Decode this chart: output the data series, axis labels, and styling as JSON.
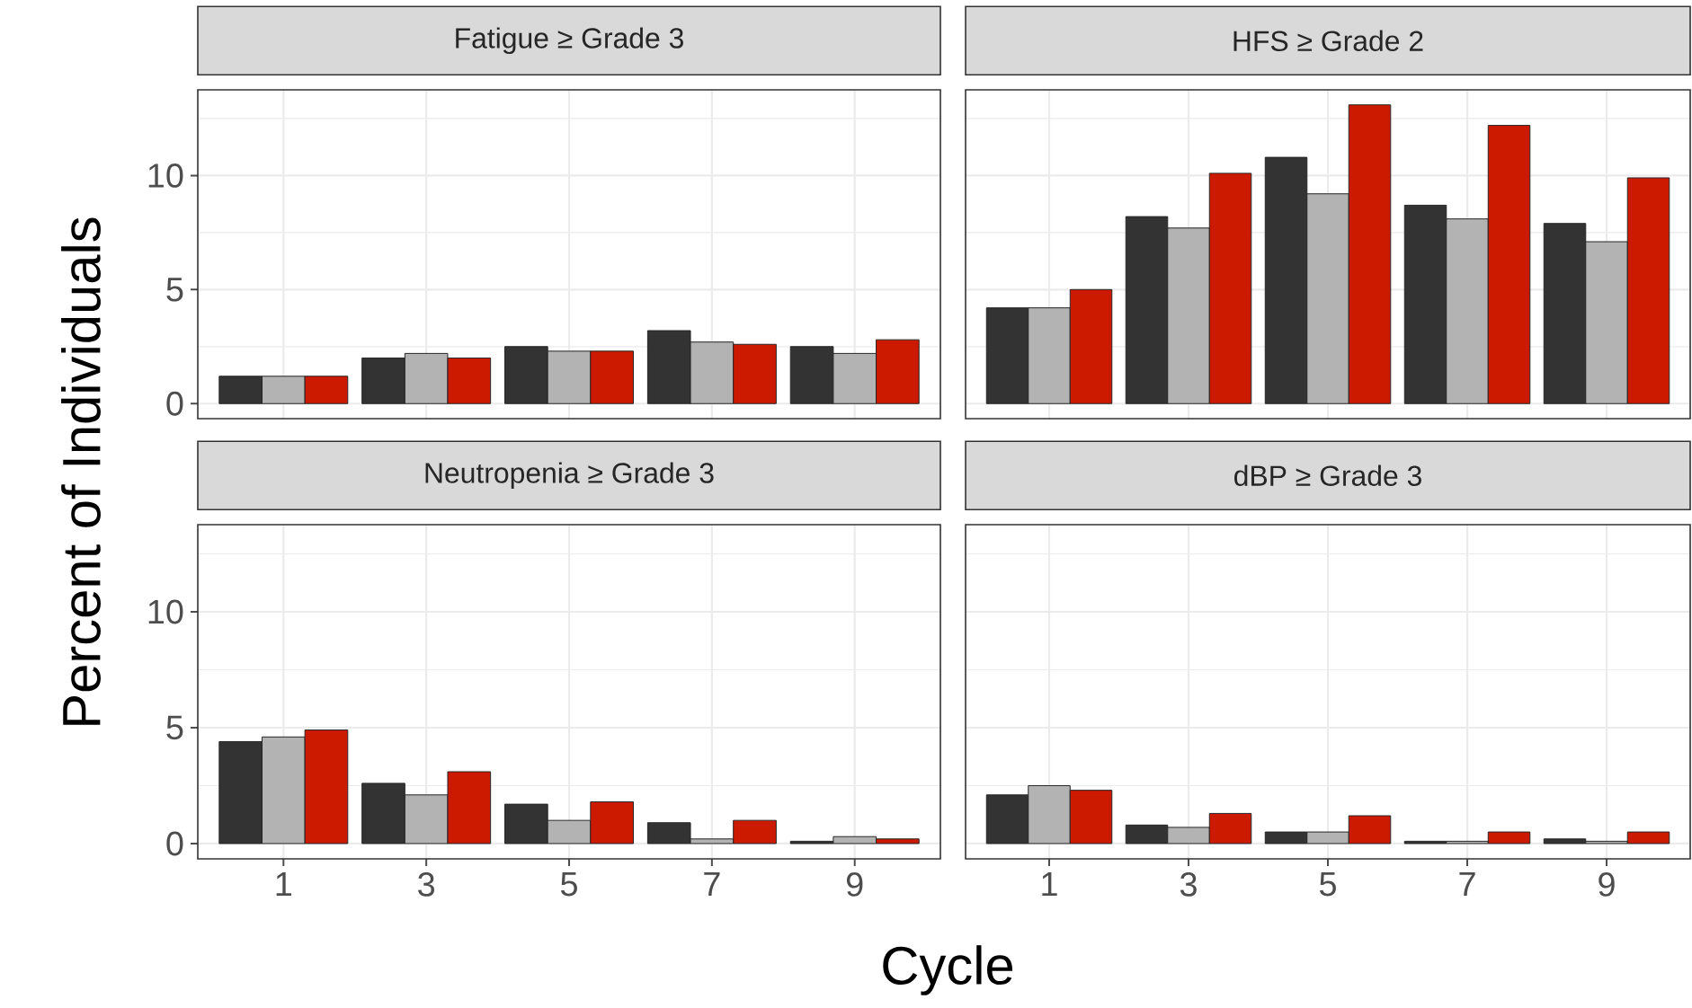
{
  "chart_data": [
    {
      "type": "bar",
      "title": "Fatigue ≥ Grade 3",
      "ylabel": "Percent of Individuals",
      "x": [
        1,
        3,
        5,
        7,
        9
      ],
      "xlim": [
        -0.2,
        10.2
      ],
      "xticks": [
        1,
        3,
        5,
        7,
        9
      ],
      "ylim": [
        -0.66,
        13.76
      ],
      "yticks": [
        0,
        5,
        10
      ],
      "grid": true,
      "tick_labels": "y",
      "series": [
        {
          "color": "#333333",
          "values": [
            1.2,
            2.0,
            2.5,
            3.2,
            2.5
          ]
        },
        {
          "color": "#b3b3b3",
          "values": [
            1.2,
            2.2,
            2.3,
            2.7,
            2.2
          ]
        },
        {
          "color": "#cc1a00",
          "values": [
            1.2,
            2.0,
            2.3,
            2.6,
            2.8
          ]
        }
      ]
    },
    {
      "type": "bar",
      "title": "HFS ≥ Grade 2",
      "x": [
        1,
        3,
        5,
        7,
        9
      ],
      "xlim": [
        -0.2,
        10.2
      ],
      "xticks": [
        1,
        3,
        5,
        7,
        9
      ],
      "ylim": [
        -0.66,
        13.76
      ],
      "yticks": [
        0,
        5,
        10
      ],
      "grid": true,
      "tick_labels": false,
      "series": [
        {
          "color": "#333333",
          "values": [
            4.2,
            8.2,
            10.8,
            8.7,
            7.9
          ]
        },
        {
          "color": "#b3b3b3",
          "values": [
            4.2,
            7.7,
            9.2,
            8.1,
            7.1
          ]
        },
        {
          "color": "#cc1a00",
          "values": [
            5.0,
            10.1,
            13.1,
            12.2,
            9.9
          ]
        }
      ]
    },
    {
      "type": "bar",
      "title": "Neutropenia ≥ Grade 3",
      "xlabel": "Cycle",
      "x": [
        1,
        3,
        5,
        7,
        9
      ],
      "xlim": [
        -0.2,
        10.2
      ],
      "xticks": [
        1,
        3,
        5,
        7,
        9
      ],
      "ylim": [
        -0.66,
        13.76
      ],
      "yticks": [
        0,
        5,
        10
      ],
      "grid": true,
      "series": [
        {
          "color": "#333333",
          "values": [
            4.4,
            2.6,
            1.7,
            0.9,
            0.1
          ]
        },
        {
          "color": "#b3b3b3",
          "values": [
            4.6,
            2.1,
            1.0,
            0.2,
            0.3
          ]
        },
        {
          "color": "#cc1a00",
          "values": [
            4.9,
            3.1,
            1.8,
            1.0,
            0.2
          ]
        }
      ]
    },
    {
      "type": "bar",
      "title": "dBP ≥ Grade 3",
      "x": [
        1,
        3,
        5,
        7,
        9
      ],
      "xlim": [
        -0.2,
        10.2
      ],
      "xticks": [
        1,
        3,
        5,
        7,
        9
      ],
      "ylim": [
        -0.66,
        13.76
      ],
      "yticks": [
        0,
        5,
        10
      ],
      "grid": true,
      "tick_labels": "x",
      "series": [
        {
          "color": "#333333",
          "values": [
            2.1,
            0.8,
            0.5,
            0.1,
            0.2
          ]
        },
        {
          "color": "#b3b3b3",
          "values": [
            2.5,
            0.7,
            0.5,
            0.1,
            0.1
          ]
        },
        {
          "color": "#cc1a00",
          "values": [
            2.3,
            1.3,
            1.2,
            0.5,
            0.5
          ]
        }
      ]
    }
  ]
}
